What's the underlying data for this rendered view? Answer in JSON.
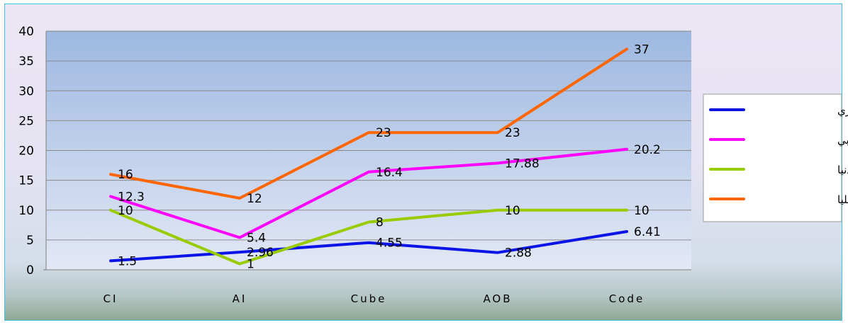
{
  "chart_data": {
    "type": "line",
    "title": "",
    "xlabel": "",
    "ylabel": "",
    "categories": [
      "CI",
      "AI",
      "Cube",
      "AOB",
      "Code"
    ],
    "ylim": [
      0,
      40
    ],
    "yticks": [
      "0",
      "5",
      "10",
      "15",
      "20",
      "25",
      "30",
      "35",
      "40"
    ],
    "grid": true,
    "legend_position": "right",
    "series": [
      {
        "name": "الانحراف المعياري",
        "color": "#0a14e6",
        "values": [
          1.5,
          2.96,
          4.55,
          2.88,
          6.41
        ],
        "labels": [
          "1.5",
          "2.96",
          "4.55",
          "2.88",
          "6.41"
        ]
      },
      {
        "name": "المتوسط الحسابي",
        "color": "#ff00ff",
        "values": [
          12.3,
          5.4,
          16.4,
          17.88,
          20.2
        ],
        "labels": [
          "12.3",
          "5.4",
          "16.4",
          "17.88",
          "20.2"
        ]
      },
      {
        "name": "المجموعات الدنيا",
        "color": "#99cc00",
        "values": [
          10,
          1,
          8,
          10,
          10
        ],
        "labels": [
          "10",
          "1",
          "8",
          "10",
          "10"
        ]
      },
      {
        "name": "المجموعات العليا",
        "color": "#ff6600",
        "values": [
          16,
          12,
          23,
          23,
          37
        ],
        "labels": [
          "16",
          "12",
          "23",
          "23",
          "37"
        ]
      }
    ]
  }
}
